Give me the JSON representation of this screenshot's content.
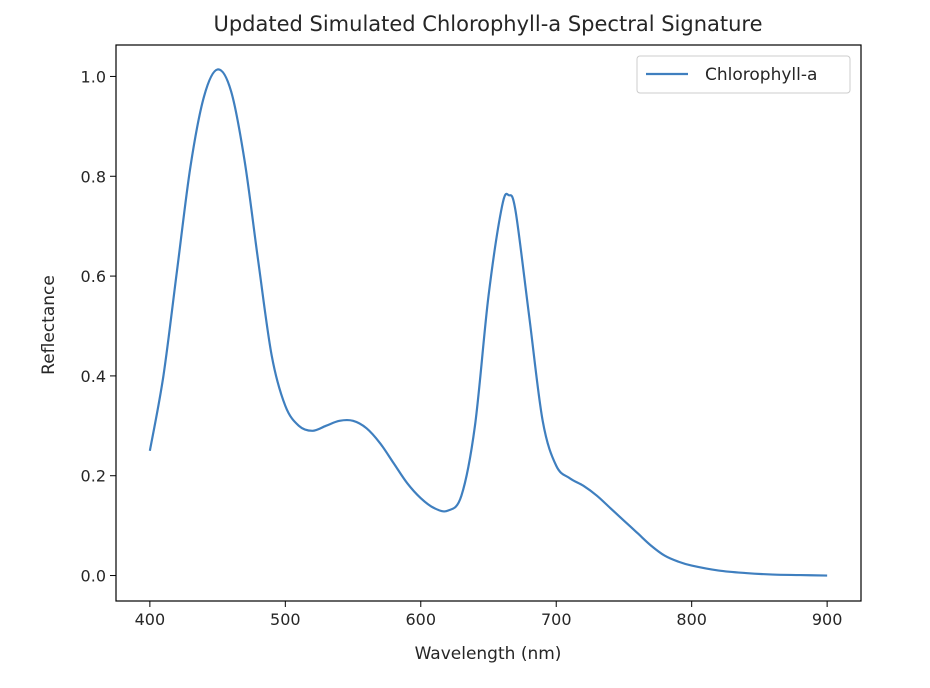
{
  "chart_data": {
    "type": "line",
    "title": "Updated Simulated Chlorophyll-a Spectral Signature",
    "xlabel": "Wavelength (nm)",
    "ylabel": "Reflectance",
    "xlim": [
      375,
      925
    ],
    "ylim": [
      -0.051,
      1.063
    ],
    "xticks": [
      400,
      500,
      600,
      700,
      800,
      900
    ],
    "xtick_labels": [
      "400",
      "500",
      "600",
      "700",
      "800",
      "900"
    ],
    "yticks": [
      0.0,
      0.2,
      0.4,
      0.6,
      0.8,
      1.0
    ],
    "ytick_labels": [
      "0.0",
      "0.2",
      "0.4",
      "0.6",
      "0.8",
      "1.0"
    ],
    "grid": false,
    "legend_position": "top-right",
    "series": [
      {
        "name": "Chlorophyll-a",
        "color": "#3f7fbf",
        "x": [
          400,
          410,
          420,
          430,
          440,
          450,
          460,
          470,
          480,
          490,
          500,
          510,
          520,
          530,
          540,
          550,
          560,
          570,
          580,
          590,
          600,
          610,
          620,
          630,
          640,
          650,
          660,
          665,
          670,
          680,
          690,
          700,
          710,
          720,
          730,
          740,
          750,
          760,
          770,
          780,
          790,
          800,
          820,
          840,
          860,
          880,
          900
        ],
        "values": [
          0.25,
          0.4,
          0.61,
          0.82,
          0.96,
          1.014,
          0.97,
          0.83,
          0.63,
          0.44,
          0.34,
          0.3,
          0.29,
          0.3,
          0.31,
          0.31,
          0.295,
          0.265,
          0.225,
          0.185,
          0.155,
          0.135,
          0.13,
          0.16,
          0.3,
          0.56,
          0.74,
          0.762,
          0.73,
          0.52,
          0.31,
          0.22,
          0.195,
          0.18,
          0.16,
          0.135,
          0.11,
          0.085,
          0.06,
          0.04,
          0.028,
          0.02,
          0.01,
          0.005,
          0.002,
          0.001,
          0.0
        ]
      }
    ]
  }
}
